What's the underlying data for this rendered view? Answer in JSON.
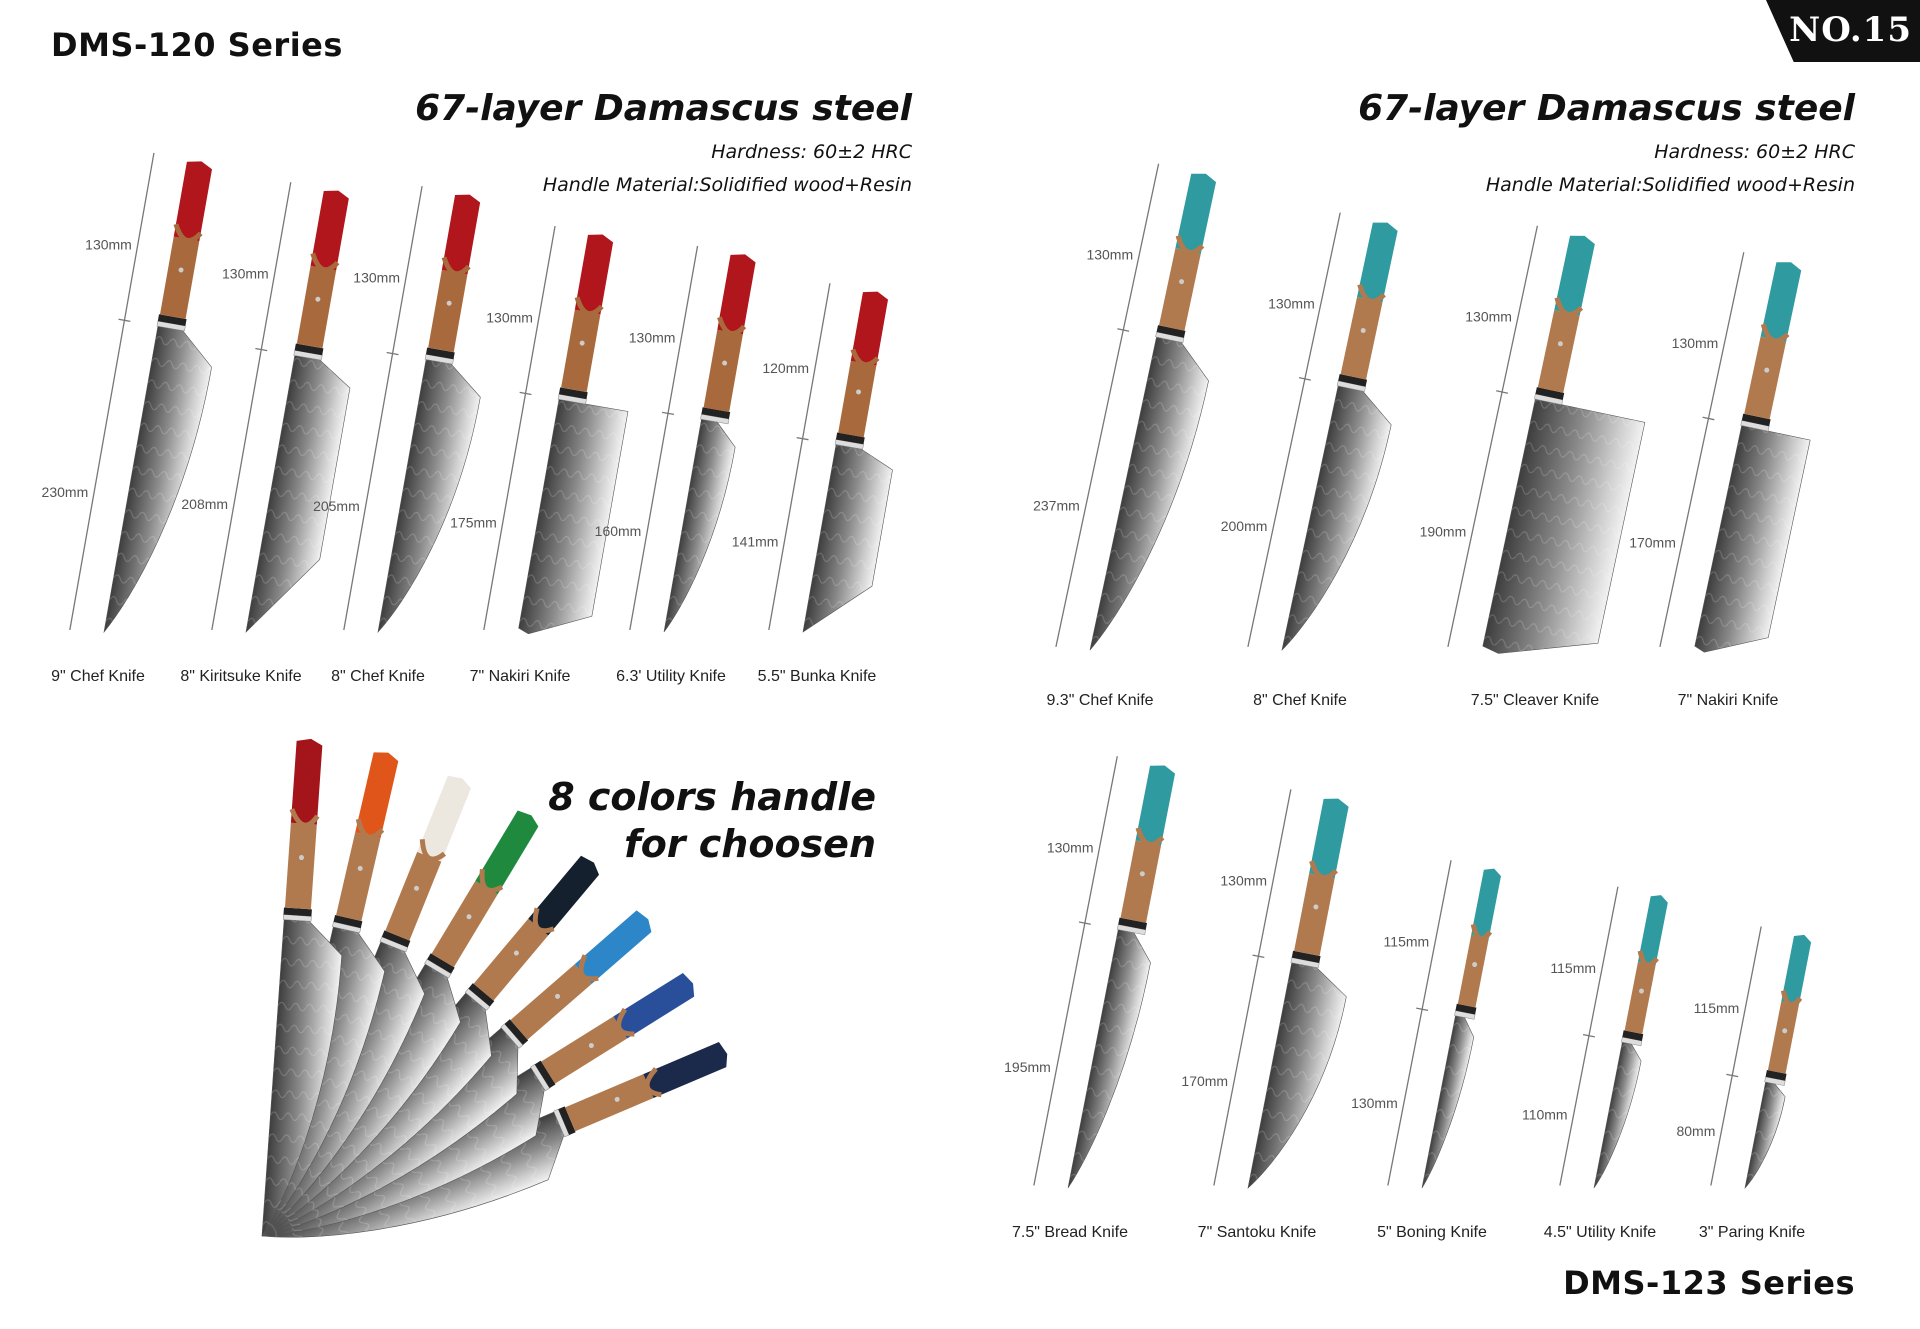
{
  "badge": "NO.15",
  "left_series": {
    "title": "DMS-120 Series",
    "heading": "67-layer Damascus steel",
    "hardness": "Hardness: 60±2 HRC",
    "handle_material": "Handle Material:Solidified wood+Resin",
    "handle_colors": {
      "resin": "#b0161c",
      "wood": "#a86a3c"
    },
    "knives": [
      {
        "name": "9\" Chef Knife",
        "blade": "230mm",
        "handle": "130mm",
        "blade_mm": 230,
        "handle_mm": 130,
        "shape": "chef"
      },
      {
        "name": "8\" Kiritsuke Knife",
        "blade": "208mm",
        "handle": "130mm",
        "blade_mm": 208,
        "handle_mm": 130,
        "shape": "kiritsuke"
      },
      {
        "name": "8\" Chef Knife",
        "blade": "205mm",
        "handle": "130mm",
        "blade_mm": 205,
        "handle_mm": 130,
        "shape": "chef"
      },
      {
        "name": "7\" Nakiri Knife",
        "blade": "175mm",
        "handle": "130mm",
        "blade_mm": 175,
        "handle_mm": 130,
        "shape": "nakiri"
      },
      {
        "name": "6.3' Utility Knife",
        "blade": "160mm",
        "handle": "130mm",
        "blade_mm": 160,
        "handle_mm": 130,
        "shape": "utility"
      },
      {
        "name": "5.5\" Bunka Knife",
        "blade": "141mm",
        "handle": "120mm",
        "blade_mm": 141,
        "handle_mm": 120,
        "shape": "kiritsuke"
      }
    ]
  },
  "colors_section": {
    "heading_line1": "8 colors handle",
    "heading_line2": "for choosen",
    "handle_colors": [
      "#a3151b",
      "#e0561a",
      "#ece8df",
      "#1f8a3e",
      "#14202e",
      "#2d86c8",
      "#2a4f9a",
      "#1b2a4a"
    ]
  },
  "right_series": {
    "title": "DMS-123 Series",
    "heading": "67-layer Damascus steel",
    "hardness": "Hardness: 60±2 HRC",
    "handle_material": "Handle Material:Solidified wood+Resin",
    "handle_colors": {
      "resin": "#2f9aa0",
      "wood": "#b07a4e"
    },
    "top_knives": [
      {
        "name": "9.3\" Chef Knife",
        "blade": "237mm",
        "handle": "130mm",
        "blade_mm": 237,
        "handle_mm": 130,
        "shape": "chef"
      },
      {
        "name": "8\" Chef Knife",
        "blade": "200mm",
        "handle": "130mm",
        "blade_mm": 200,
        "handle_mm": 130,
        "shape": "chef"
      },
      {
        "name": "7.5\" Cleaver Knife",
        "blade": "190mm",
        "handle": "130mm",
        "blade_mm": 190,
        "handle_mm": 130,
        "shape": "cleaver"
      },
      {
        "name": "7\" Nakiri Knife",
        "blade": "170mm",
        "handle": "130mm",
        "blade_mm": 170,
        "handle_mm": 130,
        "shape": "nakiri"
      }
    ],
    "bottom_knives": [
      {
        "name": "7.5\" Bread Knife",
        "blade": "195mm",
        "handle": "130mm",
        "blade_mm": 195,
        "handle_mm": 130,
        "shape": "utility"
      },
      {
        "name": "7\" Santoku Knife",
        "blade": "170mm",
        "handle": "130mm",
        "blade_mm": 170,
        "handle_mm": 130,
        "shape": "chef"
      },
      {
        "name": "5\" Boning Knife",
        "blade": "130mm",
        "handle": "115mm",
        "blade_mm": 130,
        "handle_mm": 115,
        "shape": "thin"
      },
      {
        "name": "4.5\" Utility Knife",
        "blade": "110mm",
        "handle": "115mm",
        "blade_mm": 110,
        "handle_mm": 115,
        "shape": "thin"
      },
      {
        "name": "3\" Paring Knife",
        "blade": "80mm",
        "handle": "115mm",
        "blade_mm": 80,
        "handle_mm": 115,
        "shape": "thin"
      }
    ]
  }
}
